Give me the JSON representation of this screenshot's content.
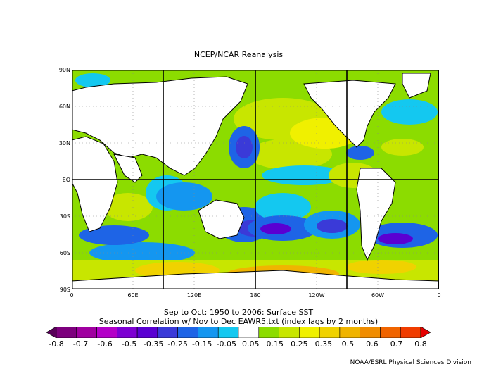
{
  "title": "NCEP/NCAR Reanalysis",
  "caption_line1": "Sep to Oct: 1950 to 2006: Surface SST",
  "caption_line2": "Seasonal Correlation w/ Nov to Dec EAWR5.txt (index lags by 2 months)",
  "credit": "NOAA/ESRL Physical Sciences Division",
  "lat_labels": [
    "90N",
    "60N",
    "30N",
    "EQ",
    "30S",
    "60S",
    "90S"
  ],
  "lon_labels": [
    "0",
    "60E",
    "120E",
    "180",
    "120W",
    "60W",
    "0"
  ],
  "colorbar_labels": [
    "-0.8",
    "-0.7",
    "-0.6",
    "-0.5",
    "-0.35",
    "-0.25",
    "-0.15",
    "-0.05",
    "0.05",
    "0.15",
    "0.25",
    "0.35",
    "0.5",
    "0.6",
    "0.7",
    "0.8"
  ],
  "colors": {
    "palette": [
      "#5a005a",
      "#7d007d",
      "#a000a0",
      "#b400c8",
      "#7d00d2",
      "#5a00d2",
      "#3a3ad8",
      "#1e64e6",
      "#1496f0",
      "#14c8f0",
      "#ffffff",
      "#8cdc00",
      "#c8e600",
      "#f0f000",
      "#f0d200",
      "#f0b400",
      "#f08c00",
      "#f06400",
      "#f03c00",
      "#e60000"
    ],
    "land": "#ffffff",
    "grid_major": "#000000"
  }
}
